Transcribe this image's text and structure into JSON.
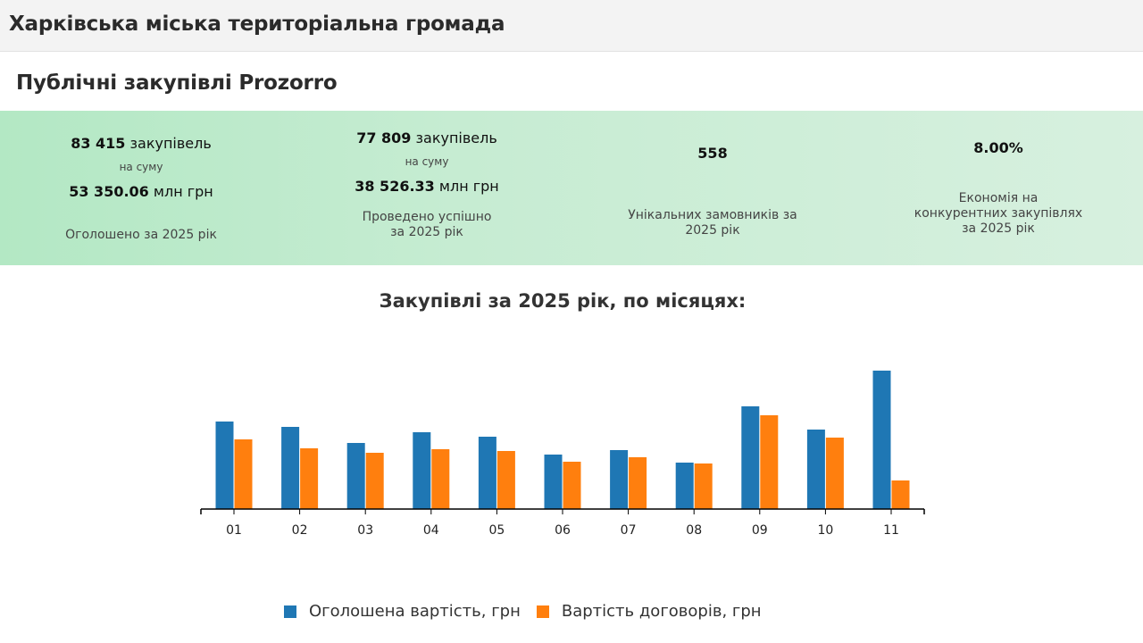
{
  "header": {
    "title": "Харківська міська територіальна громада"
  },
  "section": {
    "title": "Публічні закупівлі Prozorro"
  },
  "stats": [
    {
      "count": "83 415",
      "count_unit": "закупівель",
      "sum_label": "на суму",
      "amount": "53 350.06",
      "amount_unit": "млн грн",
      "caption_1": "Оголошено за 2025 рік",
      "caption_2": ""
    },
    {
      "count": "77 809",
      "count_unit": "закупівель",
      "sum_label": "на суму",
      "amount": "38 526.33",
      "amount_unit": "млн грн",
      "caption_1": "Проведено успішно",
      "caption_2": "за 2025 рік"
    },
    {
      "value": "558",
      "caption_1": "Унікальних замовників за",
      "caption_2": "2025 рік"
    },
    {
      "value": "8.00%",
      "caption_1": "Економія на",
      "caption_2": "конкурентних закупівлях",
      "caption_3": "за 2025 рік"
    }
  ],
  "chart_data": {
    "type": "bar",
    "title": "Закупівлі за 2025 рік, по місяцях:",
    "categories": [
      "01",
      "02",
      "03",
      "04",
      "05",
      "06",
      "07",
      "08",
      "09",
      "10",
      "11"
    ],
    "series": [
      {
        "name": "Оголошена вартість, грн",
        "color": "#1f77b4",
        "values": [
          98,
          92,
          74,
          86,
          81,
          61,
          66,
          52,
          115,
          89,
          155
        ]
      },
      {
        "name": "Вартість договорів, грн",
        "color": "#ff7f0e",
        "values": [
          78,
          68,
          63,
          67,
          65,
          53,
          58,
          51,
          105,
          80,
          32
        ]
      }
    ],
    "legend_position": "bottom",
    "grid": false,
    "ylim": [
      0,
      160
    ]
  }
}
